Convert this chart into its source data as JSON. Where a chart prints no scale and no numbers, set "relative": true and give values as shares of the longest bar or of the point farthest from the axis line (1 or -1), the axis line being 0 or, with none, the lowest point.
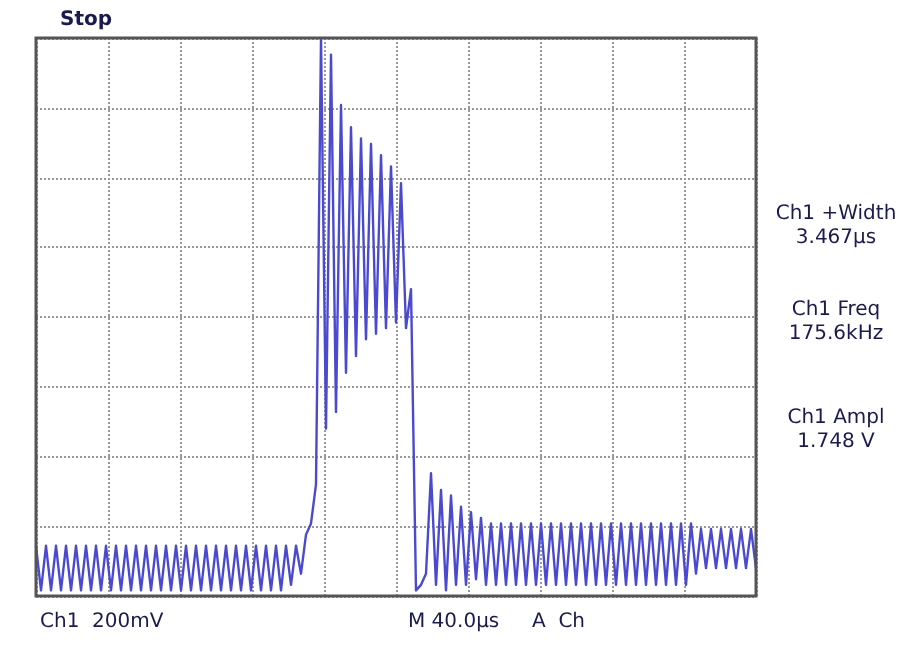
{
  "chart_data": {
    "type": "line",
    "relative": true,
    "grid": true,
    "line_style": "solid",
    "categories": [
      null,
      null,
      null,
      null,
      null,
      null,
      null,
      null,
      null,
      null,
      null,
      null,
      null,
      null,
      null,
      null,
      null,
      null,
      null,
      null,
      null,
      null,
      null,
      null,
      null,
      null,
      null,
      null,
      null,
      null,
      null,
      null,
      null,
      null,
      null,
      null,
      null,
      null,
      null,
      null,
      null,
      null,
      null,
      null,
      null,
      null,
      null,
      null,
      null,
      null,
      null,
      null,
      null,
      null,
      null,
      null,
      null,
      null,
      null,
      null,
      null,
      null,
      null,
      null,
      null,
      null,
      null,
      null,
      null,
      null,
      null,
      null,
      null,
      null,
      null,
      null,
      null,
      null,
      null,
      null,
      null,
      null,
      null,
      null,
      null,
      null,
      null,
      null,
      null,
      null,
      null,
      null,
      null,
      null,
      null,
      null,
      null,
      null,
      null,
      null,
      null,
      null,
      null,
      null,
      null,
      null,
      null,
      null,
      null,
      null,
      null,
      null,
      null,
      null,
      null,
      null,
      null,
      null,
      null,
      null,
      null,
      null,
      null,
      null,
      null,
      null,
      null,
      null,
      null,
      null,
      null,
      null,
      null,
      null,
      null,
      null,
      null,
      null,
      null,
      null,
      null,
      null,
      null,
      null,
      null
    ],
    "series": [
      {
        "color": "#4a4ad0",
        "values": [
          0.09,
          0.01,
          0.09,
          0.01,
          0.09,
          0.01,
          0.09,
          0.01,
          0.09,
          0.01,
          0.09,
          0.01,
          0.09,
          0.01,
          0.09,
          0.01,
          0.09,
          0.01,
          0.09,
          0.01,
          0.09,
          0.01,
          0.09,
          0.01,
          0.09,
          0.01,
          0.09,
          0.01,
          0.09,
          0.01,
          0.09,
          0.01,
          0.09,
          0.01,
          0.09,
          0.01,
          0.09,
          0.01,
          0.09,
          0.01,
          0.09,
          0.01,
          0.09,
          0.01,
          0.09,
          0.01,
          0.09,
          0.01,
          0.09,
          0.01,
          0.09,
          0.02,
          0.09,
          0.04,
          0.11,
          0.13,
          0.2,
          1.0,
          0.3,
          0.97,
          0.33,
          0.88,
          0.4,
          0.84,
          0.43,
          0.82,
          0.46,
          0.81,
          0.47,
          0.79,
          0.48,
          0.77,
          0.49,
          0.74,
          0.48,
          0.55,
          0.01,
          0.02,
          0.04,
          0.22,
          0.02,
          0.19,
          0.01,
          0.18,
          0.02,
          0.16,
          0.02,
          0.15,
          0.03,
          0.14,
          0.02,
          0.13,
          0.02,
          0.13,
          0.02,
          0.13,
          0.02,
          0.13,
          0.02,
          0.13,
          0.02,
          0.13,
          0.02,
          0.13,
          0.02,
          0.13,
          0.02,
          0.13,
          0.02,
          0.13,
          0.02,
          0.13,
          0.02,
          0.13,
          0.02,
          0.13,
          0.02,
          0.13,
          0.02,
          0.13,
          0.02,
          0.13,
          0.02,
          0.13,
          0.02,
          0.13,
          0.02,
          0.13,
          0.02,
          0.13,
          0.02,
          0.13,
          0.04,
          0.12,
          0.05,
          0.12,
          0.05,
          0.12,
          0.05,
          0.12,
          0.05,
          0.12,
          0.05,
          0.12,
          0.05
        ]
      }
    ],
    "annotations": [
      "Stop",
      "Ch1 +Width\n3.467µs",
      "Ch1 Freq\n175.6kHz",
      "Ch1 Ampl\n1.748 V",
      "Ch1  200mV",
      "M 40.0µs",
      "A  Ch"
    ]
  }
}
